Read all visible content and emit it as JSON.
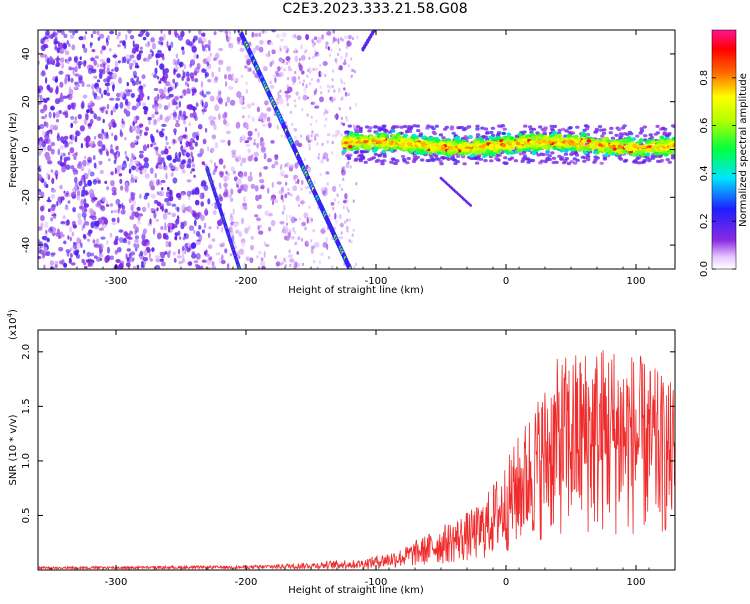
{
  "figure_title": "C2E3.2023.333.21.58.G08",
  "colors": {
    "snr_line": "#ef2b2b",
    "frame": "#000000"
  },
  "chart_data": [
    {
      "type": "heatmap",
      "xlabel": "Height of straight line (km)",
      "ylabel": "Frequency (Hz)",
      "xlim": [
        -360,
        130
      ],
      "ylim": [
        -50,
        50
      ],
      "xticks": [
        -300,
        -200,
        -100,
        0,
        100
      ],
      "yticks": [
        -40,
        -20,
        0,
        20,
        40
      ],
      "colorbar": {
        "label": "Normalized spectral amplitude",
        "range": [
          0,
          1
        ],
        "ticks": [
          0.0,
          0.2,
          0.4,
          0.6,
          0.8
        ],
        "tick_labels": [
          "0.0",
          "0.2",
          "0.4",
          "0.6",
          "0.8"
        ],
        "colormap": "rainbow (white-violet-blue-cyan-green-yellow-red-magenta)"
      },
      "features": {
        "noise_region_x": [
          -360,
          -120
        ],
        "center_band": {
          "x": [
            -125,
            130
          ],
          "freq_center": 2,
          "freq_halfwidth": 5
        },
        "streak_main": {
          "x_start": -205,
          "f_start": 50,
          "x_end": -120,
          "f_end": -50
        },
        "streak_left": {
          "x_start": -230,
          "f_start": -8,
          "x_end": -205,
          "f_end": -50
        }
      }
    },
    {
      "type": "line",
      "xlabel": "Height of straight line (km)",
      "ylabel": "SNR (10 * v/v)",
      "y_multiplier": "(x10",
      "y_multiplier_exp": "4",
      "y_multiplier_close": ")",
      "xlim": [
        -360,
        130
      ],
      "ylim": [
        0,
        2.2
      ],
      "xticks": [
        -300,
        -200,
        -100,
        0,
        100
      ],
      "yticks": [
        0.5,
        1.0,
        1.5,
        2.0
      ],
      "ytick_labels": [
        "0.5",
        "1.0",
        "1.5",
        "2.0"
      ],
      "series": [
        {
          "envelope_x": [
            -360,
            -200,
            -150,
            -110,
            -80,
            -50,
            -20,
            0,
            20,
            40,
            60,
            80,
            100,
            130
          ],
          "envelope_max": [
            0.02,
            0.03,
            0.06,
            0.1,
            0.2,
            0.4,
            0.6,
            1.0,
            1.5,
            1.95,
            2.05,
            2.1,
            2.0,
            1.7
          ],
          "envelope_base": [
            0.0,
            0.0,
            0.0,
            0.01,
            0.02,
            0.05,
            0.08,
            0.15,
            0.25,
            0.3,
            0.3,
            0.3,
            0.3,
            0.3
          ]
        }
      ]
    }
  ]
}
